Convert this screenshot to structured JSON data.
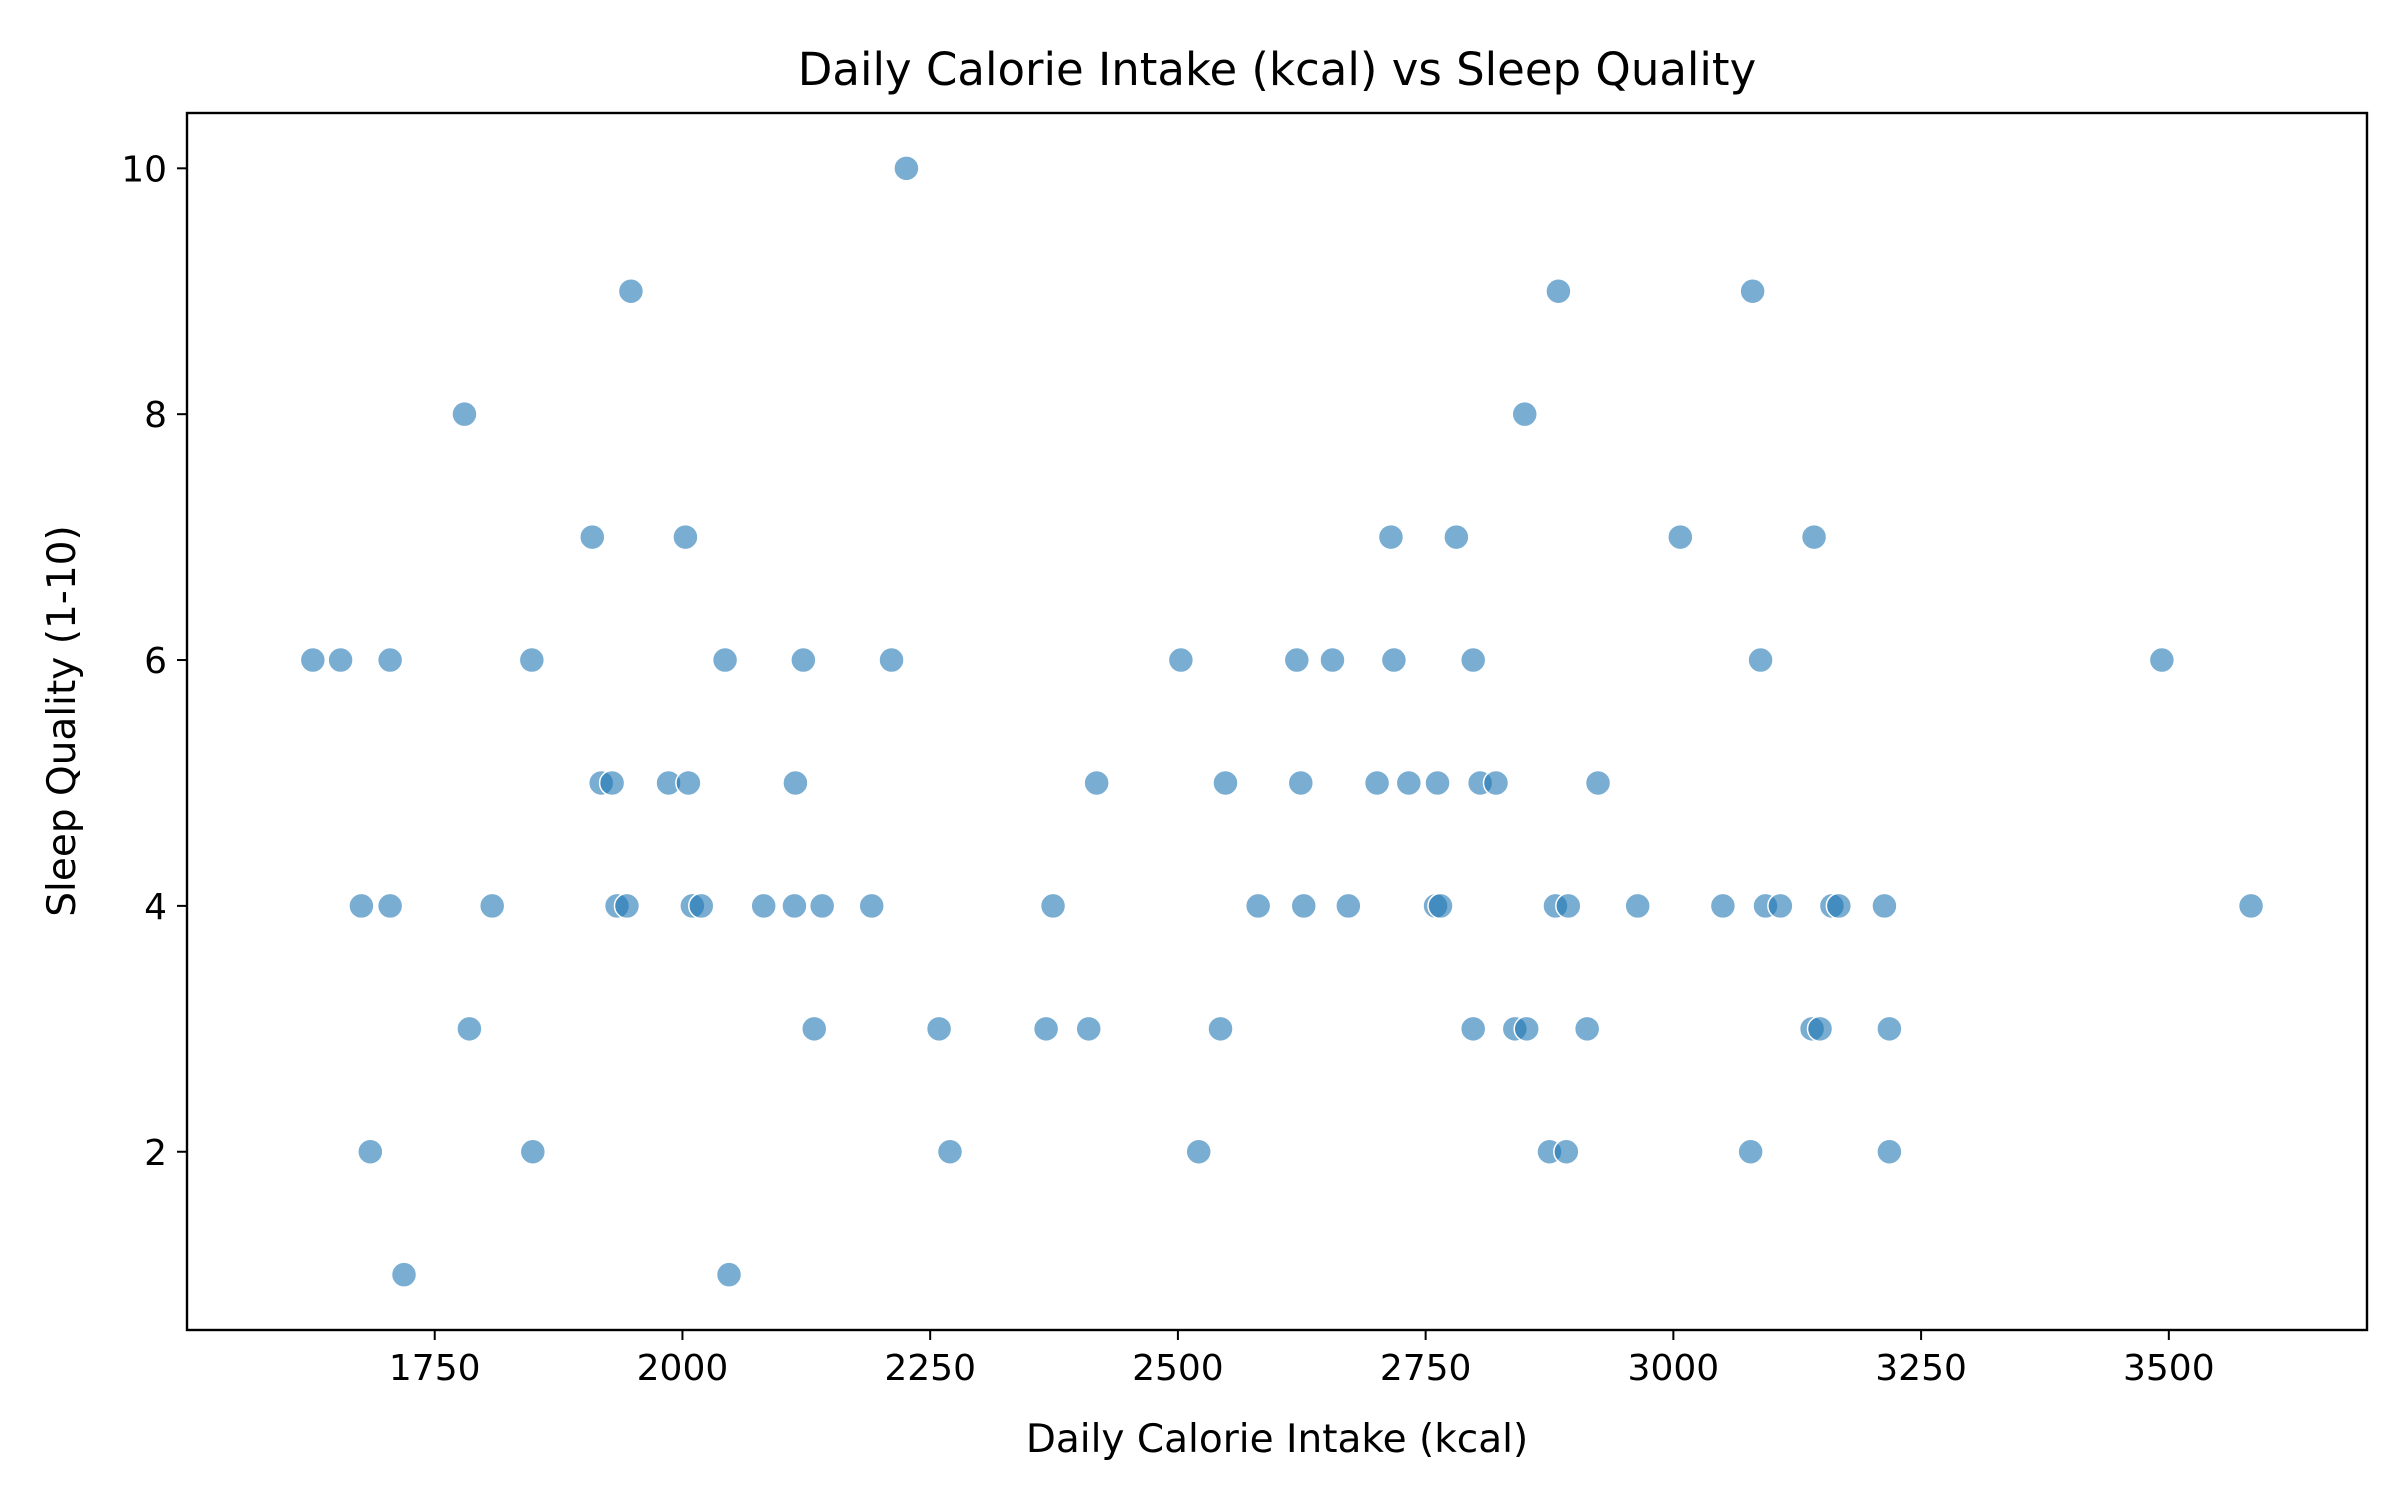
{
  "chart_data": {
    "type": "scatter",
    "title": "Daily Calorie Intake (kcal) vs Sleep Quality",
    "xlabel": "Daily Calorie Intake (kcal)",
    "ylabel": "Sleep Quality (1-10)",
    "xlim": [
      1500,
      3700
    ],
    "ylim": [
      0.55,
      10.45
    ],
    "xticks": [
      1750,
      2000,
      2250,
      2500,
      2750,
      3000,
      3250,
      3500
    ],
    "yticks": [
      2,
      4,
      6,
      8,
      10
    ],
    "grid": false,
    "color": "#1f77b4",
    "points": [
      {
        "x": 1627,
        "y": 6
      },
      {
        "x": 1655,
        "y": 6
      },
      {
        "x": 1705,
        "y": 6
      },
      {
        "x": 1848,
        "y": 6
      },
      {
        "x": 2043,
        "y": 6
      },
      {
        "x": 2122,
        "y": 6
      },
      {
        "x": 2211,
        "y": 6
      },
      {
        "x": 2503,
        "y": 6
      },
      {
        "x": 2620,
        "y": 6
      },
      {
        "x": 2656,
        "y": 6
      },
      {
        "x": 2718,
        "y": 6
      },
      {
        "x": 2798,
        "y": 6
      },
      {
        "x": 3088,
        "y": 6
      },
      {
        "x": 3493,
        "y": 6
      },
      {
        "x": 1780,
        "y": 8
      },
      {
        "x": 2850,
        "y": 8
      },
      {
        "x": 1909,
        "y": 7
      },
      {
        "x": 2003,
        "y": 7
      },
      {
        "x": 2715,
        "y": 7
      },
      {
        "x": 2781,
        "y": 7
      },
      {
        "x": 3007,
        "y": 7
      },
      {
        "x": 3142,
        "y": 7
      },
      {
        "x": 1948,
        "y": 9
      },
      {
        "x": 2884,
        "y": 9
      },
      {
        "x": 3080,
        "y": 9
      },
      {
        "x": 2226,
        "y": 10
      },
      {
        "x": 1918,
        "y": 5
      },
      {
        "x": 1929,
        "y": 5
      },
      {
        "x": 1986,
        "y": 5
      },
      {
        "x": 2006,
        "y": 5
      },
      {
        "x": 2114,
        "y": 5
      },
      {
        "x": 2418,
        "y": 5
      },
      {
        "x": 2548,
        "y": 5
      },
      {
        "x": 2624,
        "y": 5
      },
      {
        "x": 2701,
        "y": 5
      },
      {
        "x": 2733,
        "y": 5
      },
      {
        "x": 2762,
        "y": 5
      },
      {
        "x": 2805,
        "y": 5
      },
      {
        "x": 2821,
        "y": 5
      },
      {
        "x": 2924,
        "y": 5
      },
      {
        "x": 1676,
        "y": 4
      },
      {
        "x": 1705,
        "y": 4
      },
      {
        "x": 1808,
        "y": 4
      },
      {
        "x": 1934,
        "y": 4
      },
      {
        "x": 1944,
        "y": 4
      },
      {
        "x": 2010,
        "y": 4
      },
      {
        "x": 2019,
        "y": 4
      },
      {
        "x": 2082,
        "y": 4
      },
      {
        "x": 2113,
        "y": 4
      },
      {
        "x": 2141,
        "y": 4
      },
      {
        "x": 2191,
        "y": 4
      },
      {
        "x": 2374,
        "y": 4
      },
      {
        "x": 2581,
        "y": 4
      },
      {
        "x": 2627,
        "y": 4
      },
      {
        "x": 2672,
        "y": 4
      },
      {
        "x": 2760,
        "y": 4
      },
      {
        "x": 2765,
        "y": 4
      },
      {
        "x": 2881,
        "y": 4
      },
      {
        "x": 2894,
        "y": 4
      },
      {
        "x": 2964,
        "y": 4
      },
      {
        "x": 3050,
        "y": 4
      },
      {
        "x": 3093,
        "y": 4
      },
      {
        "x": 3108,
        "y": 4
      },
      {
        "x": 3160,
        "y": 4
      },
      {
        "x": 3167,
        "y": 4
      },
      {
        "x": 3213,
        "y": 4
      },
      {
        "x": 3583,
        "y": 4
      },
      {
        "x": 1785,
        "y": 3
      },
      {
        "x": 2133,
        "y": 3
      },
      {
        "x": 2259,
        "y": 3
      },
      {
        "x": 2367,
        "y": 3
      },
      {
        "x": 2410,
        "y": 3
      },
      {
        "x": 2543,
        "y": 3
      },
      {
        "x": 2798,
        "y": 3
      },
      {
        "x": 2840,
        "y": 3
      },
      {
        "x": 2852,
        "y": 3
      },
      {
        "x": 2913,
        "y": 3
      },
      {
        "x": 3140,
        "y": 3
      },
      {
        "x": 3148,
        "y": 3
      },
      {
        "x": 3218,
        "y": 3
      },
      {
        "x": 1685,
        "y": 2
      },
      {
        "x": 1849,
        "y": 2
      },
      {
        "x": 2270,
        "y": 2
      },
      {
        "x": 2521,
        "y": 2
      },
      {
        "x": 2875,
        "y": 2
      },
      {
        "x": 2892,
        "y": 2
      },
      {
        "x": 3078,
        "y": 2
      },
      {
        "x": 3218,
        "y": 2
      },
      {
        "x": 1719,
        "y": 1
      },
      {
        "x": 2047,
        "y": 1
      }
    ]
  }
}
